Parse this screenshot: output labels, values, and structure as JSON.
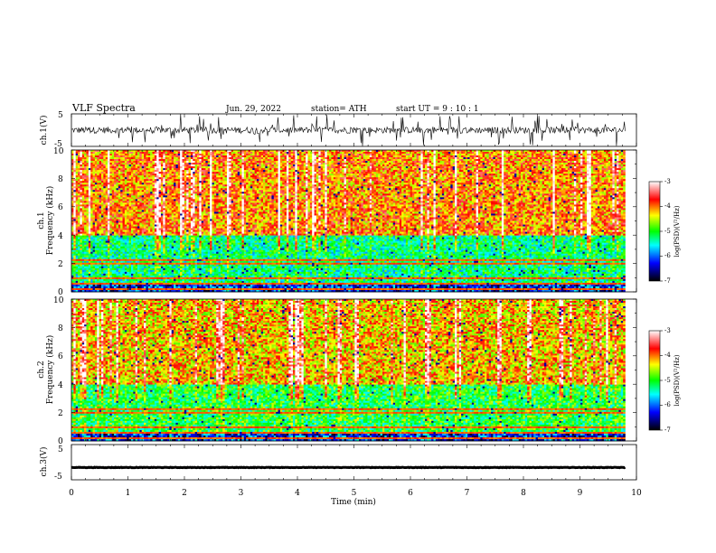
{
  "header": {
    "title": "VLF  Spectra",
    "date": "Jun. 29, 2022",
    "station": "station= ATH",
    "start": "start  UT  =    9  : 10 : 1"
  },
  "colors": {
    "spectrum_ramp": [
      "#000000",
      "#0000ff",
      "#00ffff",
      "#00ff00",
      "#ffff00",
      "#ff0000",
      "#ffffff"
    ],
    "trace": "#000000"
  },
  "chart_data": [
    {
      "type": "line",
      "panel": "ch1-waveform",
      "ylabel": "ch.1(V)",
      "ylim": [
        -5,
        5
      ],
      "yticks": [
        "5",
        "-5"
      ],
      "xlim": [
        0,
        10
      ],
      "series": [
        {
          "values_approx": "noisy trace around 0 V, amplitude about ±1 V with frequent spikes to ±5 V"
        }
      ]
    },
    {
      "type": "heatmap",
      "panel": "ch1-spectrogram",
      "ylabel_channel": "ch.1",
      "ylabel": "Frequency  (kHz)",
      "ylim": [
        0,
        10
      ],
      "yticks": [
        "0",
        "2",
        "4",
        "6",
        "8",
        "10"
      ],
      "xlim": [
        0,
        10
      ],
      "colorbar": {
        "label": "log(PSD)(V²/Hz)",
        "range": [
          -7,
          -3
        ],
        "ticks": [
          "-3",
          "-4",
          "-5",
          "-6",
          "-7"
        ]
      },
      "features": {
        "high_band_above_kHz": 4,
        "high_band_log_psd": -4,
        "low_band_below_kHz": 4,
        "low_band_log_psd": -5.3,
        "horizontal_lines_kHz": [
          0.2,
          0.6,
          1.0,
          2.0,
          2.2
        ],
        "bright_vertical_bursts": "frequent sferics across full time span"
      }
    },
    {
      "type": "heatmap",
      "panel": "ch2-spectrogram",
      "ylabel_channel": "ch.2",
      "ylabel": "Frequency  (kHz)",
      "ylim": [
        0,
        10
      ],
      "yticks": [
        "0",
        "2",
        "4",
        "6",
        "8",
        "10"
      ],
      "xlim": [
        0,
        10
      ],
      "colorbar": {
        "label": "log(PSD)(V²/Hz)",
        "range": [
          -7,
          -3
        ],
        "ticks": [
          "-3",
          "-4",
          "-5",
          "-6",
          "-7"
        ]
      },
      "features": {
        "high_band_above_kHz": 4,
        "high_band_log_psd": -4.2,
        "low_band_below_kHz": 4,
        "low_band_log_psd": -5.1,
        "horizontal_lines_kHz": [
          0.2,
          0.6,
          1.0,
          2.0,
          2.2
        ],
        "bright_vertical_bursts": "frequent sferics across full time span"
      }
    },
    {
      "type": "line",
      "panel": "ch3-waveform",
      "ylabel": "ch.3(V)",
      "ylim": [
        -5,
        5
      ],
      "yticks": [
        "5",
        "-5"
      ],
      "xlim": [
        0,
        10
      ],
      "series": [
        {
          "values_approx": "nearly flat trace at about -1.5 V"
        }
      ]
    }
  ],
  "xaxis": {
    "label": "Time  (min)",
    "ticks": [
      "0",
      "1",
      "2",
      "3",
      "4",
      "5",
      "6",
      "7",
      "8",
      "9",
      "10"
    ],
    "data_end_min": 9.8
  }
}
